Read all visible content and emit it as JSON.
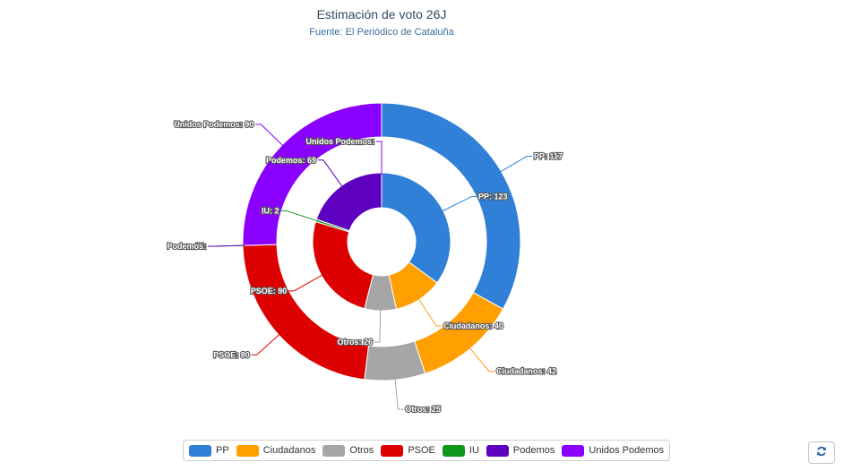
{
  "chart_data": {
    "type": "pie",
    "title": "Estimación de voto 26J",
    "subtitle": "Fuente: El Periódico de Cataluña",
    "colors": {
      "PP": "#2f80d6",
      "Ciudadanos": "#ff9f00",
      "Otros": "#a6a6a6",
      "PSOE": "#dd0000",
      "IU": "#109618",
      "Podemos": "#5d00c0",
      "Unidos Podemos": "#8a00ff"
    },
    "series": [
      {
        "ring": "inner",
        "slices": [
          {
            "name": "PP",
            "value": 123,
            "label": "PP: 123"
          },
          {
            "name": "Ciudadanos",
            "value": 40,
            "label": "Ciudadanos: 40"
          },
          {
            "name": "Otros",
            "value": 26,
            "label": "Otros: 26"
          },
          {
            "name": "PSOE",
            "value": 90,
            "label": "PSOE: 90"
          },
          {
            "name": "IU",
            "value": 2,
            "label": "IU: 2"
          },
          {
            "name": "Podemos",
            "value": 69,
            "label": "Podemos: 69"
          },
          {
            "name": "Unidos Podemos",
            "value": 0,
            "label": "Unidos Podemos:"
          }
        ]
      },
      {
        "ring": "outer",
        "slices": [
          {
            "name": "PP",
            "value": 117,
            "label": "PP: 117"
          },
          {
            "name": "Ciudadanos",
            "value": 42,
            "label": "Ciudadanos: 42"
          },
          {
            "name": "Otros",
            "value": 25,
            "label": "Otros: 25"
          },
          {
            "name": "PSOE",
            "value": 80,
            "label": "PSOE: 80"
          },
          {
            "name": "IU",
            "value": 0,
            "label": "IU:"
          },
          {
            "name": "Podemos",
            "value": 0,
            "label": "Podemos:"
          },
          {
            "name": "Unidos Podemos",
            "value": 90,
            "label": "Unidos Podemos: 90"
          }
        ]
      }
    ],
    "legend": {
      "position": "bottom",
      "items": [
        "PP",
        "Ciudadanos",
        "Otros",
        "PSOE",
        "IU",
        "Podemos",
        "Unidos Podemos"
      ]
    }
  },
  "toolbar": {
    "refresh_icon": "refresh-icon"
  }
}
